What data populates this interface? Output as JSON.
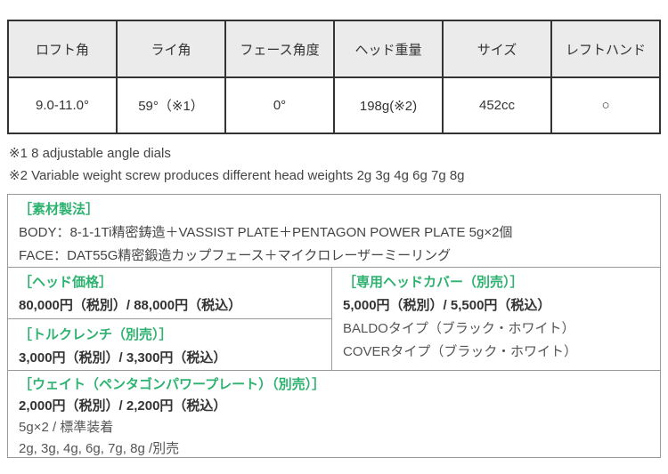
{
  "colors": {
    "accent_green": "#2eb270",
    "table_header_bg": "#ebebeb",
    "table_border": "#333333",
    "box_border": "#999999"
  },
  "spec_table": {
    "headers": [
      "ロフト角",
      "ライ角",
      "フェース角度",
      "ヘッド重量",
      "サイズ",
      "レフトハンド"
    ],
    "values": [
      "9.0-11.0°",
      "59°（※1）",
      "0°",
      "198g(※2)",
      "452cc",
      "○"
    ]
  },
  "notes": {
    "note1": "※1 8 adjustable angle dials",
    "note2": "※2 Variable weight screw produces different head weights 2g 3g 4g 6g 7g 8g"
  },
  "material": {
    "title": "［素材製法］",
    "body_line": "BODY：8-1-1Ti精密鋳造＋VASSIST PLATE＋PENTAGON POWER PLATE 5g×2個",
    "face_line": "FACE：DAT55G精密鍛造カップフェース＋マイクロレーザーミーリング"
  },
  "head_price": {
    "title": "［ヘッド価格］",
    "price": "80,000円（税別）/ 88,000円（税込）"
  },
  "head_cover": {
    "title": "［専用ヘッドカバー（別売）］",
    "price": "5,000円（税別）/ 5,500円（税込）",
    "type1": "BALDOタイプ（ブラック・ホワイト）",
    "type2": "COVERタイプ（ブラック・ホワイト）"
  },
  "torque_wrench": {
    "title": "［トルクレンチ（別売）］",
    "price": "3,000円（税別）/ 3,300円（税込）"
  },
  "weight": {
    "title": "［ウェイト（ペンタゴンパワープレート）（別売）］",
    "price": "2,000円（税別）/ 2,200円（税込）",
    "included": "5g×2 / 標準装着",
    "optional": "2g, 3g, 4g, 6g, 7g, 8g /別売"
  }
}
